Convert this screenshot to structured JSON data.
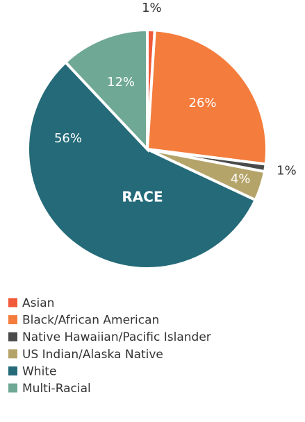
{
  "chart_data": {
    "type": "pie",
    "center_label": "RACE",
    "categories": [
      "Asian",
      "Black/African American",
      "Native Hawaiian/Pacific Islander",
      "US Indian/Alaska Native",
      "White",
      "Multi-Racial"
    ],
    "values": [
      1,
      26,
      1,
      4,
      56,
      12
    ],
    "value_labels": [
      "1%",
      "26%",
      "1%",
      "4%",
      "56%",
      "12%"
    ],
    "colors": [
      "#f05a3a",
      "#f47c3c",
      "#4a4a4a",
      "#b5a46a",
      "#246a78",
      "#6fa894"
    ],
    "legend": "bottom"
  }
}
